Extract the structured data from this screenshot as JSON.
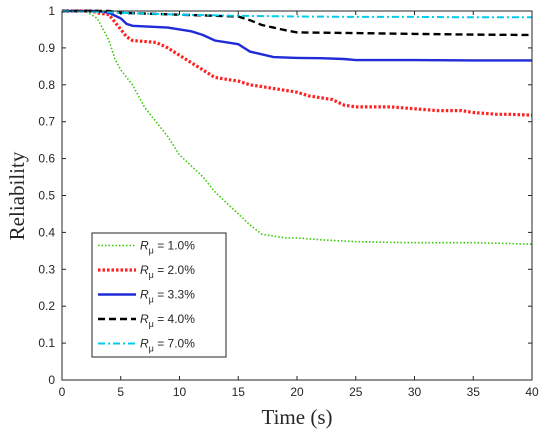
{
  "chart_data": {
    "type": "line",
    "title": "",
    "xlabel": "Time (s)",
    "ylabel": "Reliability",
    "xlim": [
      0,
      40
    ],
    "ylim": [
      0,
      1
    ],
    "xticks": [
      0,
      5,
      10,
      15,
      20,
      25,
      30,
      35,
      40
    ],
    "yticks": [
      0,
      0.1,
      0.2,
      0.3,
      0.4,
      0.5,
      0.6,
      0.7,
      0.8,
      0.9,
      1
    ],
    "grid": false,
    "legend_position": "lower-left",
    "series": [
      {
        "name_prefix": "R",
        "name_subscript": "μ",
        "name_suffix": " = 1.0%",
        "color": "#33cc00",
        "style": "dotted",
        "x": [
          0,
          2,
          3,
          4,
          4.5,
          5,
          6,
          7,
          8,
          9,
          10,
          11,
          12,
          13,
          14,
          15,
          16,
          17,
          18,
          19,
          20,
          22,
          25,
          28,
          30,
          32,
          35,
          38,
          40
        ],
        "y": [
          1.0,
          1.0,
          0.98,
          0.92,
          0.87,
          0.84,
          0.8,
          0.74,
          0.7,
          0.66,
          0.61,
          0.58,
          0.55,
          0.51,
          0.48,
          0.45,
          0.42,
          0.395,
          0.39,
          0.385,
          0.385,
          0.38,
          0.375,
          0.373,
          0.372,
          0.372,
          0.372,
          0.37,
          0.368
        ]
      },
      {
        "name_prefix": "R",
        "name_subscript": "μ",
        "name_suffix": " = 2.0%",
        "color": "#ff2020",
        "style": "dotted-thick",
        "x": [
          0,
          2.5,
          3,
          4,
          4.5,
          5,
          5.5,
          6,
          8,
          9,
          10,
          11,
          12,
          13,
          14,
          15,
          16,
          17,
          18,
          19,
          20,
          21,
          22,
          23,
          24,
          25,
          28,
          30,
          32,
          34,
          35,
          37,
          38,
          40
        ],
        "y": [
          1.0,
          1.0,
          0.995,
          0.99,
          0.97,
          0.95,
          0.93,
          0.92,
          0.915,
          0.9,
          0.88,
          0.86,
          0.84,
          0.82,
          0.815,
          0.81,
          0.8,
          0.795,
          0.79,
          0.785,
          0.78,
          0.77,
          0.765,
          0.76,
          0.745,
          0.74,
          0.74,
          0.735,
          0.73,
          0.73,
          0.725,
          0.72,
          0.72,
          0.718
        ]
      },
      {
        "name_prefix": "R",
        "name_subscript": "μ",
        "name_suffix": " = 3.3%",
        "color": "#1f2bd6",
        "style": "solid",
        "x": [
          0,
          3,
          4,
          5,
          5.5,
          6,
          9,
          10,
          11,
          12,
          13,
          15,
          16,
          18,
          20,
          22,
          24,
          25,
          28,
          30,
          35,
          40
        ],
        "y": [
          1.0,
          1.0,
          0.995,
          0.98,
          0.965,
          0.96,
          0.955,
          0.95,
          0.945,
          0.935,
          0.92,
          0.91,
          0.89,
          0.875,
          0.873,
          0.872,
          0.87,
          0.867,
          0.867,
          0.867,
          0.866,
          0.866
        ]
      },
      {
        "name_prefix": "R",
        "name_subscript": "μ",
        "name_suffix": " = 4.0%",
        "color": "#000000",
        "style": "dashed",
        "x": [
          0,
          4,
          5,
          10,
          15,
          16,
          17,
          18,
          19,
          20,
          25,
          30,
          35,
          40
        ],
        "y": [
          1.0,
          1.0,
          0.995,
          0.99,
          0.985,
          0.975,
          0.962,
          0.955,
          0.948,
          0.942,
          0.94,
          0.938,
          0.936,
          0.935
        ]
      },
      {
        "name_prefix": "R",
        "name_subscript": "μ",
        "name_suffix": " = 7.0%",
        "color": "#00ccee",
        "style": "dashdot",
        "x": [
          0,
          3,
          5,
          10,
          15,
          20,
          25,
          30,
          35,
          40
        ],
        "y": [
          1.0,
          0.998,
          0.995,
          0.99,
          0.987,
          0.985,
          0.984,
          0.984,
          0.983,
          0.983
        ]
      }
    ]
  }
}
